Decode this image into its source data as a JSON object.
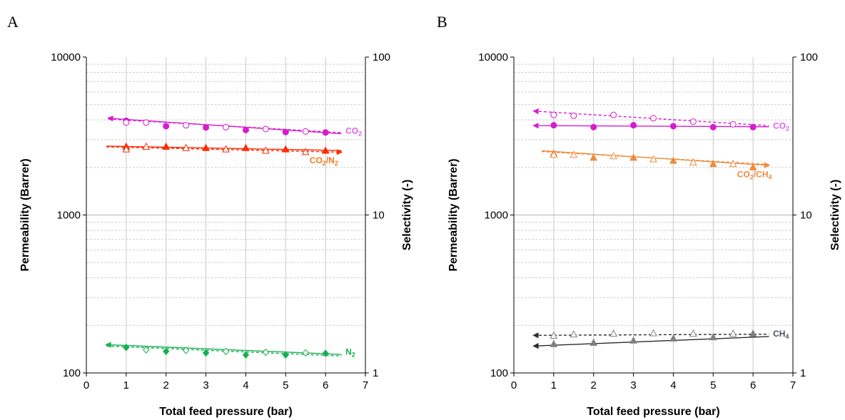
{
  "chart_data": [
    {
      "type": "scatter",
      "panel_label": "A",
      "xlabel": "Total feed pressure (bar)",
      "ylabel": "Permeability (Barrer)",
      "y2label": "Selectivity (-)",
      "xlim": [
        0,
        7
      ],
      "ylim": [
        100,
        10000
      ],
      "y2lim": [
        1,
        100
      ],
      "yscale": "log",
      "x_ticks": [
        "0",
        "1",
        "2",
        "3",
        "4",
        "5",
        "6",
        "7"
      ],
      "y_ticks": [
        "100",
        "1000",
        "10000"
      ],
      "y2_ticks": [
        "1",
        "10",
        "100"
      ],
      "grid": true,
      "series": [
        {
          "key": "co2_filled",
          "axis": "left",
          "color": "#d81bd0",
          "marker": "circle",
          "filled": true,
          "x": [
            1,
            2,
            3,
            4,
            5,
            6
          ],
          "y": [
            3950,
            3650,
            3580,
            3450,
            3350,
            3330
          ]
        },
        {
          "key": "co2_open",
          "axis": "left",
          "color": "#d81bd0",
          "marker": "circle",
          "filled": false,
          "x": [
            1,
            1.5,
            2.5,
            3.5,
            4.5,
            5.5
          ],
          "y": [
            3850,
            3850,
            3700,
            3600,
            3500,
            3380
          ]
        },
        {
          "key": "sel_filled",
          "axis": "right",
          "color": "#ff2a00",
          "marker": "triangle",
          "filled": true,
          "x": [
            1,
            2,
            3,
            4,
            5,
            6
          ],
          "y": [
            27,
            27,
            26.5,
            26.5,
            26,
            25.5
          ]
        },
        {
          "key": "sel_open",
          "axis": "right",
          "color": "#ff2a00",
          "marker": "triangle",
          "filled": false,
          "x": [
            1,
            1.5,
            2.5,
            3.5,
            4.5,
            5.5
          ],
          "y": [
            26,
            27,
            26.5,
            26,
            25.5,
            25
          ]
        },
        {
          "key": "n2_filled",
          "axis": "left",
          "color": "#17b050",
          "marker": "diamond",
          "filled": true,
          "x": [
            1,
            2,
            3,
            4,
            5,
            6
          ],
          "y": [
            145,
            137,
            134,
            130,
            130,
            133
          ]
        },
        {
          "key": "n2_open",
          "axis": "left",
          "color": "#17b050",
          "marker": "diamond",
          "filled": false,
          "x": [
            1.5,
            2.5,
            3.5,
            4.5,
            5.5
          ],
          "y": [
            140,
            139,
            137,
            135,
            134
          ]
        }
      ],
      "trendlines": [
        {
          "axis": "left",
          "color": "#d81bd0",
          "dashed": false,
          "arrow": "start",
          "x": [
            0.55,
            6.4
          ],
          "y": [
            4100,
            3270
          ]
        },
        {
          "axis": "left",
          "color": "#d81bd0",
          "dashed": true,
          "arrow": "none",
          "x": [
            0.55,
            6.4
          ],
          "y": [
            4050,
            3320
          ]
        },
        {
          "axis": "right",
          "color": "#ff2a00",
          "dashed": false,
          "arrow": "none",
          "x": [
            0.5,
            6.4
          ],
          "y": [
            27.3,
            25.6
          ]
        },
        {
          "axis": "right",
          "color": "#ff2a00",
          "dashed": true,
          "arrow": "end",
          "x": [
            0.5,
            6.4
          ],
          "y": [
            27.0,
            25.0
          ]
        },
        {
          "axis": "left",
          "color": "#17b050",
          "dashed": false,
          "arrow": "start",
          "x": [
            0.5,
            6.4
          ],
          "y": [
            151,
            131
          ]
        },
        {
          "axis": "left",
          "color": "#17b050",
          "dashed": true,
          "arrow": "none",
          "x": [
            0.5,
            6.4
          ],
          "y": [
            148,
            128
          ]
        }
      ],
      "annotations": [
        {
          "label": "CO",
          "sub": "2",
          "color": "#e05ff0",
          "x": 6.5,
          "axis": "left",
          "y": 3300
        },
        {
          "label": "CO",
          "sub": "2",
          "label2": "/N",
          "sub2": "2",
          "color": "#f07a20",
          "x": 5.6,
          "axis": "right",
          "y": 21.5
        },
        {
          "label": "N",
          "sub": "2",
          "color": "#17b050",
          "x": 6.5,
          "axis": "left",
          "y": 132
        }
      ]
    },
    {
      "type": "scatter",
      "panel_label": "B",
      "xlabel": "Total feed pressure (bar)",
      "ylabel": "Permeability (Barrer)",
      "y2label": "Selectivity (-)",
      "xlim": [
        0,
        7
      ],
      "ylim": [
        100,
        10000
      ],
      "y2lim": [
        1,
        100
      ],
      "yscale": "log",
      "x_ticks": [
        "0",
        "1",
        "2",
        "3",
        "4",
        "5",
        "6",
        "7"
      ],
      "y_ticks": [
        "100",
        "1000",
        "10000"
      ],
      "y2_ticks": [
        "1",
        "10",
        "100"
      ],
      "grid": true,
      "series": [
        {
          "key": "co2_filled",
          "axis": "left",
          "color": "#d81bd0",
          "marker": "circle",
          "filled": true,
          "x": [
            1,
            2,
            3,
            4,
            5,
            6
          ],
          "y": [
            3700,
            3600,
            3700,
            3650,
            3600,
            3600
          ]
        },
        {
          "key": "co2_open",
          "axis": "left",
          "color": "#d81bd0",
          "marker": "circle",
          "filled": false,
          "x": [
            1,
            1.5,
            2.5,
            3.5,
            4.5,
            5.5
          ],
          "y": [
            4300,
            4250,
            4300,
            4100,
            3900,
            3750
          ]
        },
        {
          "key": "sel_filled",
          "axis": "right",
          "color": "#f08a3c",
          "marker": "triangle",
          "filled": true,
          "x": [
            1,
            2,
            3,
            4,
            5,
            6
          ],
          "y": [
            24.5,
            23,
            23,
            22,
            21,
            20
          ]
        },
        {
          "key": "sel_open",
          "axis": "right",
          "color": "#f08a3c",
          "marker": "triangle",
          "filled": false,
          "x": [
            1,
            1.5,
            2.5,
            3.5,
            4.5,
            5.5
          ],
          "y": [
            24,
            24,
            23.5,
            22.5,
            21.5,
            21
          ]
        },
        {
          "key": "ch4_filled",
          "axis": "left",
          "color": "#808080",
          "marker": "triangle",
          "filled": true,
          "x": [
            1,
            2,
            3,
            4,
            5,
            6
          ],
          "y": [
            152,
            155,
            160,
            165,
            168,
            177
          ]
        },
        {
          "key": "ch4_open",
          "axis": "left",
          "color": "#808080",
          "marker": "triangle",
          "filled": false,
          "x": [
            1,
            1.5,
            2.5,
            3.5,
            4.5,
            5.5
          ],
          "y": [
            172,
            175,
            177,
            178,
            177,
            177
          ]
        }
      ],
      "trendlines": [
        {
          "axis": "left",
          "color": "#d81bd0",
          "dashed": false,
          "arrow": "start",
          "x": [
            0.5,
            6.4
          ],
          "y": [
            3680,
            3620
          ]
        },
        {
          "axis": "left",
          "color": "#d81bd0",
          "dashed": true,
          "arrow": "start",
          "x": [
            0.5,
            6.4
          ],
          "y": [
            4550,
            3680
          ]
        },
        {
          "axis": "right",
          "color": "#f08a3c",
          "dashed": false,
          "arrow": "end",
          "x": [
            0.7,
            6.4
          ],
          "y": [
            25.5,
            20.6
          ]
        },
        {
          "axis": "right",
          "color": "#f08a3c",
          "dashed": true,
          "arrow": "none",
          "x": [
            0.7,
            6.4
          ],
          "y": [
            25.2,
            20.9
          ]
        },
        {
          "axis": "left",
          "color": "#2b2b2b",
          "dashed": false,
          "arrow": "start",
          "x": [
            0.5,
            6.4
          ],
          "y": [
            148,
            170
          ]
        },
        {
          "axis": "left",
          "color": "#2b2b2b",
          "dashed": true,
          "arrow": "start",
          "x": [
            0.5,
            6.4
          ],
          "y": [
            173,
            176
          ]
        }
      ],
      "annotations": [
        {
          "label": "CO",
          "sub": "2",
          "color": "#e05ff0",
          "x": 6.5,
          "axis": "left",
          "y": 3550
        },
        {
          "label": "CO",
          "sub": "2",
          "label2": "/CH",
          "sub2": "4",
          "color": "#f08a3c",
          "x": 5.6,
          "axis": "right",
          "y": 17.5
        },
        {
          "label": "CH",
          "sub": "4",
          "color": "#4a5563",
          "x": 6.5,
          "axis": "left",
          "y": 172
        }
      ]
    }
  ]
}
